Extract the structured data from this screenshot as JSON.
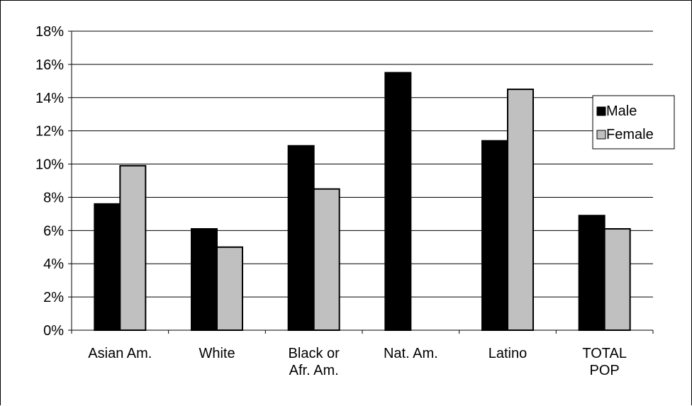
{
  "chart_data": {
    "type": "bar",
    "categories": [
      "Asian Am.",
      "White",
      "Black or Afr. Am.",
      "Nat. Am.",
      "Latino",
      "TOTAL POP"
    ],
    "category_lines": [
      [
        "Asian Am."
      ],
      [
        "White"
      ],
      [
        "Black or",
        "Afr. Am."
      ],
      [
        "Nat. Am."
      ],
      [
        "Latino"
      ],
      [
        "TOTAL",
        "POP"
      ]
    ],
    "series": [
      {
        "name": "Male",
        "values": [
          7.6,
          6.1,
          11.1,
          15.5,
          11.4,
          6.9
        ],
        "color": "#000000"
      },
      {
        "name": "Female",
        "values": [
          9.9,
          5.0,
          8.5,
          null,
          14.5,
          6.1
        ],
        "color": "#c0c0c0"
      }
    ],
    "ylim": [
      0,
      18
    ],
    "yticks": [
      0,
      2,
      4,
      6,
      8,
      10,
      12,
      14,
      16,
      18
    ],
    "ytick_labels": [
      "0%",
      "2%",
      "4%",
      "6%",
      "8%",
      "10%",
      "12%",
      "14%",
      "16%",
      "18%"
    ],
    "grid": true,
    "legend_position": "right",
    "title": "",
    "xlabel": "",
    "ylabel": ""
  }
}
